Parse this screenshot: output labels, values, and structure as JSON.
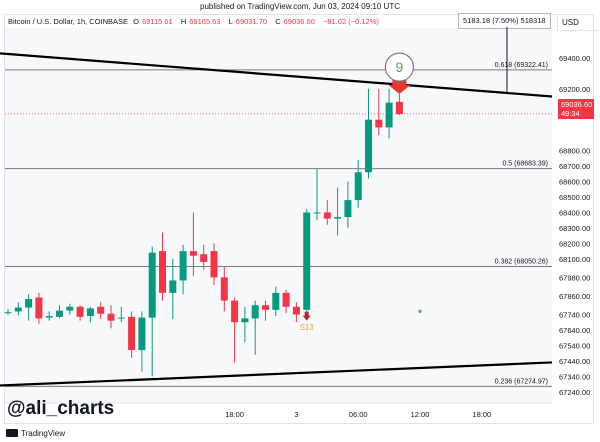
{
  "header": {
    "published": "published on TradingView.com, Jun 03, 2024 09:10 UTC"
  },
  "legend": {
    "symbol": "Bitcoin / U.S. Dollar, 1h, COINBASE",
    "open_label": "O",
    "open": "69115.61",
    "high_label": "H",
    "high": "69165.63",
    "low_label": "L",
    "low": "69031.70",
    "close_label": "C",
    "close": "69036.60",
    "change": "−81.02 (−0.12%)"
  },
  "currency": "USD",
  "measure_label": "5183.18 (7.50%) 518318",
  "watermark": "@ali_charts",
  "footer": "TradingView",
  "price_tag": {
    "price": "69036.60",
    "countdown": "49:34"
  },
  "colors": {
    "up": "#089981",
    "down": "#f23645",
    "trendline": "#000000",
    "fib": "#787b86",
    "signal_red": "#e53935",
    "signal_green": "#4caf50"
  },
  "chart_data": {
    "type": "candlestick",
    "ylim": [
      67200,
      69580
    ],
    "y_ticks": [
      "69400.00",
      "69200.00",
      "68800.00",
      "68700.00",
      "68600.00",
      "68500.00",
      "68400.00",
      "68300.00",
      "68200.00",
      "68100.00",
      "67980.00",
      "67860.00",
      "67740.00",
      "67640.00",
      "67540.00",
      "67440.00",
      "67340.00",
      "67240.00"
    ],
    "x_ticks": [
      {
        "label": "18:00",
        "index": 22
      },
      {
        "label": "3",
        "index": 28
      },
      {
        "label": "06:00",
        "index": 34
      },
      {
        "label": "12:00",
        "index": 40
      },
      {
        "label": "18:00",
        "index": 46
      }
    ],
    "candles": [
      {
        "o": 67755,
        "h": 67775,
        "l": 67735,
        "c": 67755
      },
      {
        "o": 67760,
        "h": 67820,
        "l": 67735,
        "c": 67785
      },
      {
        "o": 67785,
        "h": 67870,
        "l": 67700,
        "c": 67840
      },
      {
        "o": 67850,
        "h": 67880,
        "l": 67680,
        "c": 67715
      },
      {
        "o": 67720,
        "h": 67760,
        "l": 67700,
        "c": 67730
      },
      {
        "o": 67725,
        "h": 67800,
        "l": 67715,
        "c": 67765
      },
      {
        "o": 67765,
        "h": 67810,
        "l": 67740,
        "c": 67790
      },
      {
        "o": 67790,
        "h": 67800,
        "l": 67700,
        "c": 67725
      },
      {
        "o": 67730,
        "h": 67790,
        "l": 67690,
        "c": 67780
      },
      {
        "o": 67790,
        "h": 67820,
        "l": 67710,
        "c": 67745
      },
      {
        "o": 67745,
        "h": 67800,
        "l": 67650,
        "c": 67700
      },
      {
        "o": 67720,
        "h": 67790,
        "l": 67690,
        "c": 67720
      },
      {
        "o": 67725,
        "h": 67760,
        "l": 67460,
        "c": 67510
      },
      {
        "o": 67510,
        "h": 67760,
        "l": 67370,
        "c": 67720
      },
      {
        "o": 67720,
        "h": 68180,
        "l": 67340,
        "c": 68140
      },
      {
        "o": 68150,
        "h": 68270,
        "l": 67830,
        "c": 67880
      },
      {
        "o": 67880,
        "h": 68100,
        "l": 67710,
        "c": 67960
      },
      {
        "o": 67960,
        "h": 68190,
        "l": 67870,
        "c": 68150
      },
      {
        "o": 68150,
        "h": 68400,
        "l": 67990,
        "c": 68120
      },
      {
        "o": 68130,
        "h": 68190,
        "l": 68030,
        "c": 68080
      },
      {
        "o": 68150,
        "h": 68200,
        "l": 67930,
        "c": 67980
      },
      {
        "o": 67980,
        "h": 68050,
        "l": 67760,
        "c": 67830
      },
      {
        "o": 67830,
        "h": 67850,
        "l": 67430,
        "c": 67690
      },
      {
        "o": 67690,
        "h": 67790,
        "l": 67560,
        "c": 67715
      },
      {
        "o": 67715,
        "h": 67830,
        "l": 67480,
        "c": 67800
      },
      {
        "o": 67800,
        "h": 67830,
        "l": 67700,
        "c": 67770
      },
      {
        "o": 67770,
        "h": 67920,
        "l": 67730,
        "c": 67880
      },
      {
        "o": 67880,
        "h": 67900,
        "l": 67750,
        "c": 67790
      },
      {
        "o": 67790,
        "h": 67820,
        "l": 67690,
        "c": 67740
      },
      {
        "o": 67770,
        "h": 68420,
        "l": 67760,
        "c": 68400
      },
      {
        "o": 68400,
        "h": 68680,
        "l": 68350,
        "c": 68400
      },
      {
        "o": 68400,
        "h": 68480,
        "l": 68320,
        "c": 68360
      },
      {
        "o": 68360,
        "h": 68560,
        "l": 68250,
        "c": 68370
      },
      {
        "o": 68370,
        "h": 68600,
        "l": 68300,
        "c": 68480
      },
      {
        "o": 68480,
        "h": 68740,
        "l": 68430,
        "c": 68660
      },
      {
        "o": 68660,
        "h": 69200,
        "l": 68620,
        "c": 69000
      },
      {
        "o": 69000,
        "h": 69200,
        "l": 68900,
        "c": 68950
      },
      {
        "o": 68950,
        "h": 69200,
        "l": 68880,
        "c": 69110
      },
      {
        "o": 69115.61,
        "h": 69165.63,
        "l": 69031.7,
        "c": 69036.6
      }
    ],
    "fib_levels": [
      {
        "label": "0.618 (69322.41)",
        "price": 69322.41
      },
      {
        "label": "0.5 (68683.39)",
        "price": 68683.39
      },
      {
        "label": "0.382 (68050.26)",
        "price": 68050.26
      },
      {
        "label": "0.236 (67274.97)",
        "price": 67274.97
      }
    ],
    "trendlines": [
      {
        "from": {
          "index": -1,
          "price": 69430
        },
        "to": {
          "index": 53,
          "price": 69150
        }
      },
      {
        "from": {
          "index": -1,
          "price": 67280
        },
        "to": {
          "index": 53,
          "price": 67430
        }
      }
    ],
    "annotations": [
      {
        "type": "sell_arrow",
        "index": 38,
        "price": 69205
      },
      {
        "type": "circle_label",
        "index": 38,
        "price": 69340,
        "text": "9"
      },
      {
        "type": "buy_arrow",
        "index": 29,
        "price": 67720
      },
      {
        "type": "text_label",
        "index": 29,
        "price": 67640,
        "text": "S13"
      },
      {
        "type": "dot",
        "index": 40,
        "price": 67760
      }
    ]
  }
}
